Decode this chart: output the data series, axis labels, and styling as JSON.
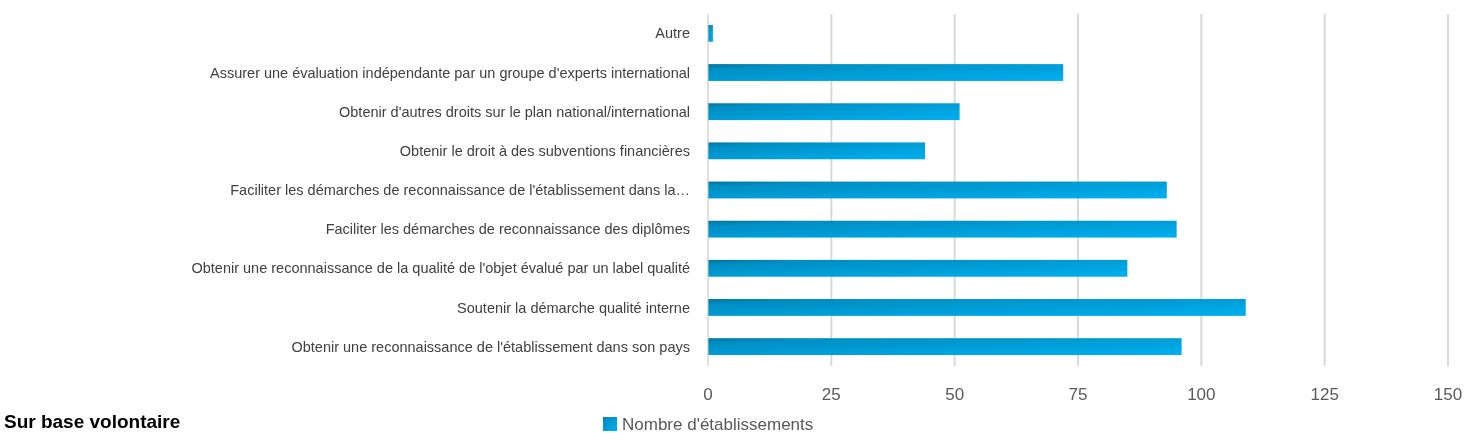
{
  "chart_data": {
    "type": "bar",
    "orientation": "horizontal",
    "categories": [
      "Autre",
      "Assurer une évaluation indépendante par un groupe d'experts international",
      "Obtenir d'autres droits sur le plan national/international",
      "Obtenir le droit à des subventions financières",
      "Faciliter les démarches de reconnaissance de l'établissement dans la…",
      "Faciliter les démarches de reconnaissance des diplômes",
      "Obtenir une reconnaissance de la qualité de l'objet évalué par un label qualité",
      "Soutenir la démarche qualité interne",
      "Obtenir une reconnaissance de l'établissement dans son pays"
    ],
    "series": [
      {
        "name": "Nombre d'établissements",
        "color": "#00b0f0",
        "values": [
          1,
          72,
          51,
          44,
          93,
          95,
          85,
          109,
          96
        ]
      }
    ],
    "xlim": [
      0,
      150
    ],
    "xticks": [
      0,
      25,
      50,
      75,
      100,
      125,
      150
    ],
    "grid": "x",
    "legend": "bottom",
    "annotations": [
      "Sur base volontaire"
    ]
  }
}
